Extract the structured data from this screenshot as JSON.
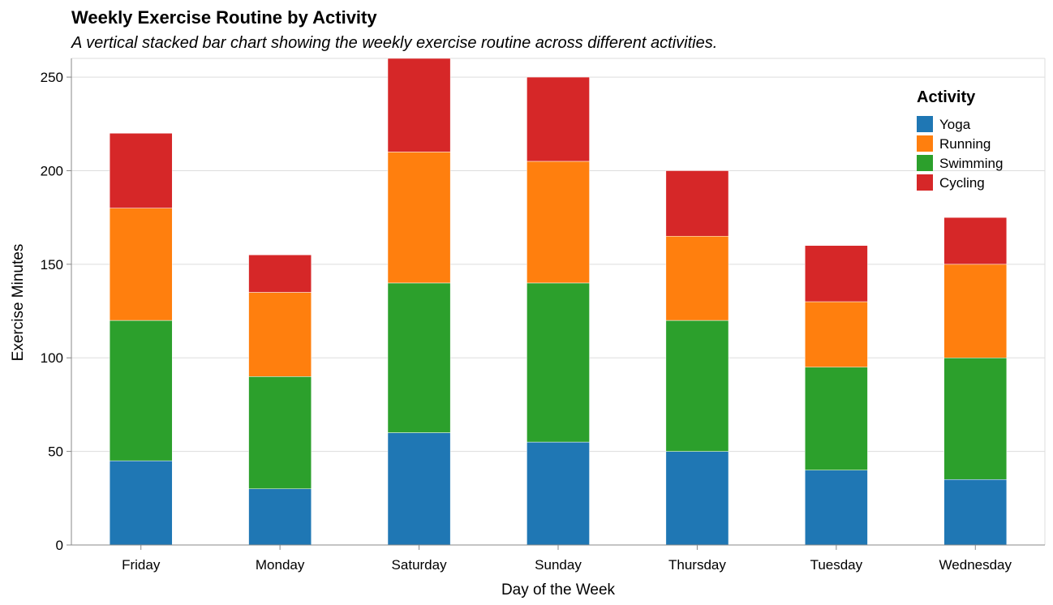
{
  "chart_data": {
    "type": "bar",
    "stacked": true,
    "title": "Weekly Exercise Routine by Activity",
    "subtitle": "A vertical stacked bar chart showing the weekly exercise routine across different activities.",
    "xlabel": "Day of the Week",
    "ylabel": "Exercise Minutes",
    "categories": [
      "Friday",
      "Monday",
      "Saturday",
      "Sunday",
      "Thursday",
      "Tuesday",
      "Wednesday"
    ],
    "series": [
      {
        "name": "Yoga",
        "color": "#1f77b4",
        "values": [
          45,
          30,
          60,
          55,
          50,
          40,
          35
        ]
      },
      {
        "name": "Running",
        "color": "#ff7f0e",
        "values": [
          60,
          45,
          70,
          65,
          45,
          35,
          50
        ]
      },
      {
        "name": "Swimming",
        "color": "#2ca02c",
        "values": [
          75,
          60,
          80,
          85,
          70,
          55,
          65
        ]
      },
      {
        "name": "Cycling",
        "color": "#d62728",
        "values": [
          40,
          20,
          50,
          45,
          35,
          30,
          25
        ]
      }
    ],
    "stack_order": [
      "Yoga",
      "Swimming",
      "Running",
      "Cycling"
    ],
    "ylim": [
      0,
      260
    ],
    "yticks": [
      0,
      50,
      100,
      150,
      200,
      250
    ],
    "grid": true,
    "legend": {
      "title": "Activity",
      "position": "top-right",
      "items": [
        "Yoga",
        "Running",
        "Swimming",
        "Cycling"
      ]
    }
  }
}
